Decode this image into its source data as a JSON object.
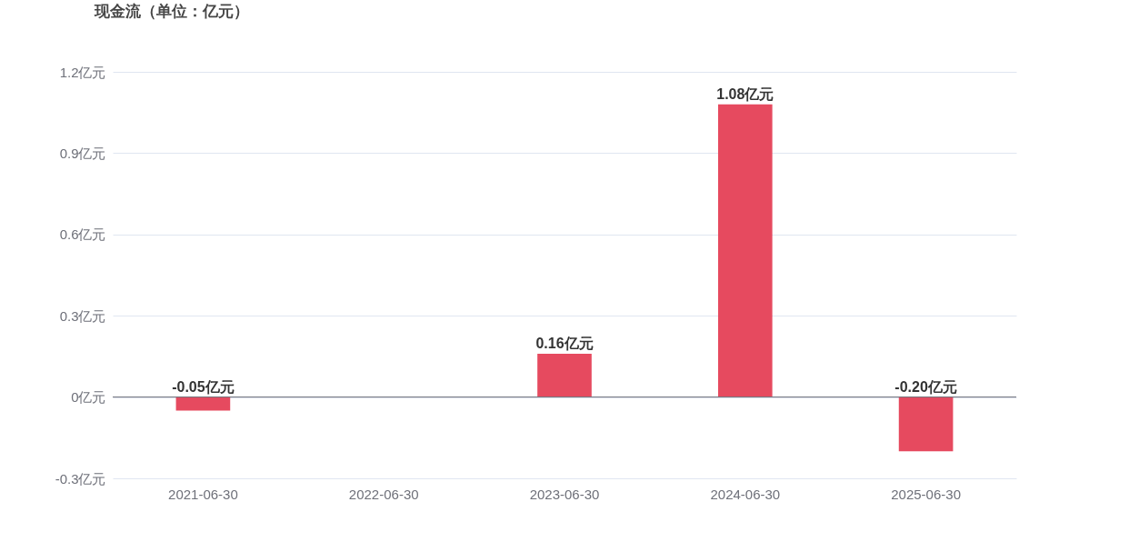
{
  "chart_data": {
    "type": "bar",
    "title": "现金流（单位：亿元）",
    "categories": [
      "2021-06-30",
      "2022-06-30",
      "2023-06-30",
      "2024-06-30",
      "2025-06-30"
    ],
    "values": [
      -0.05,
      null,
      0.16,
      1.08,
      -0.2
    ],
    "value_labels": [
      "-0.05亿元",
      null,
      "0.16亿元",
      "1.08亿元",
      "-0.20亿元"
    ],
    "color": "#e64a5f",
    "ylim": [
      -0.3,
      1.2
    ],
    "yticks": [
      {
        "value": -0.3,
        "label": "-0.3亿元"
      },
      {
        "value": 0,
        "label": "0亿元"
      },
      {
        "value": 0.3,
        "label": "0.3亿元"
      },
      {
        "value": 0.6,
        "label": "0.6亿元"
      },
      {
        "value": 0.9,
        "label": "0.9亿元"
      },
      {
        "value": 1.2,
        "label": "1.2亿元"
      }
    ],
    "ref_lines": [
      {
        "axis": "y",
        "value": 0,
        "color": "#6e7079"
      }
    ],
    "grid": "y"
  }
}
